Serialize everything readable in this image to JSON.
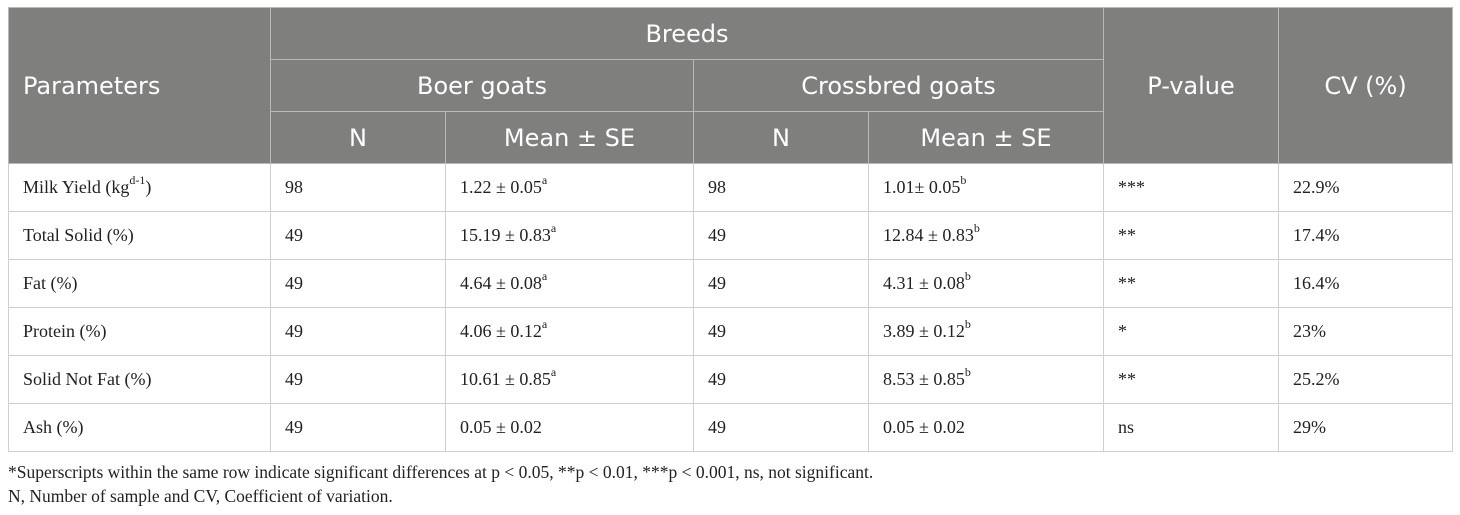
{
  "header": {
    "parameters": "Parameters",
    "breeds": "Breeds",
    "boer": "Boer goats",
    "crossbred": "Crossbred goats",
    "p_value": "P-value",
    "cv": "CV (%)",
    "n": "N",
    "mean_se": "Mean ± SE"
  },
  "rows": [
    {
      "param": "Milk Yield (kg",
      "param_sup": "d-1",
      "param_suffix": ")",
      "boer_n": "98",
      "boer_mean": "1.22 ± 0.05",
      "boer_sup": "a",
      "cross_n": "98",
      "cross_mean": "1.01± 0.05",
      "cross_sup": "b",
      "p": "***",
      "cv": "22.9%"
    },
    {
      "param": "Total Solid (%)",
      "param_sup": "",
      "param_suffix": "",
      "boer_n": "49",
      "boer_mean": "15.19 ± 0.83",
      "boer_sup": "a",
      "cross_n": "49",
      "cross_mean": "12.84 ± 0.83",
      "cross_sup": "b",
      "p": "**",
      "cv": "17.4%"
    },
    {
      "param": "Fat (%)",
      "param_sup": "",
      "param_suffix": "",
      "boer_n": "49",
      "boer_mean": "4.64 ± 0.08",
      "boer_sup": "a",
      "cross_n": "49",
      "cross_mean": "4.31 ± 0.08",
      "cross_sup": "b",
      "p": "**",
      "cv": "16.4%"
    },
    {
      "param": "Protein (%)",
      "param_sup": "",
      "param_suffix": "",
      "boer_n": "49",
      "boer_mean": "4.06 ± 0.12",
      "boer_sup": "a",
      "cross_n": "49",
      "cross_mean": "3.89 ± 0.12",
      "cross_sup": "b",
      "p": "*",
      "cv": "23%"
    },
    {
      "param": "Solid Not Fat (%)",
      "param_sup": "",
      "param_suffix": "",
      "boer_n": "49",
      "boer_mean": "10.61 ± 0.85",
      "boer_sup": "a",
      "cross_n": "49",
      "cross_mean": "8.53 ± 0.85",
      "cross_sup": "b",
      "p": "**",
      "cv": "25.2%"
    },
    {
      "param": "Ash (%)",
      "param_sup": "",
      "param_suffix": "",
      "boer_n": "49",
      "boer_mean": "0.05 ± 0.02",
      "boer_sup": "",
      "cross_n": "49",
      "cross_mean": "0.05 ± 0.02",
      "cross_sup": "",
      "p": "ns",
      "cv": "29%"
    }
  ],
  "footnotes": {
    "line1": "*Superscripts within the same row indicate significant differences at p < 0.05, **p < 0.01, ***p < 0.001, ns, not significant.",
    "line2": "N, Number of sample and CV, Coefficient of variation."
  },
  "colors": {
    "header_bg": "#7f7f7d",
    "header_text": "#ffffff"
  }
}
